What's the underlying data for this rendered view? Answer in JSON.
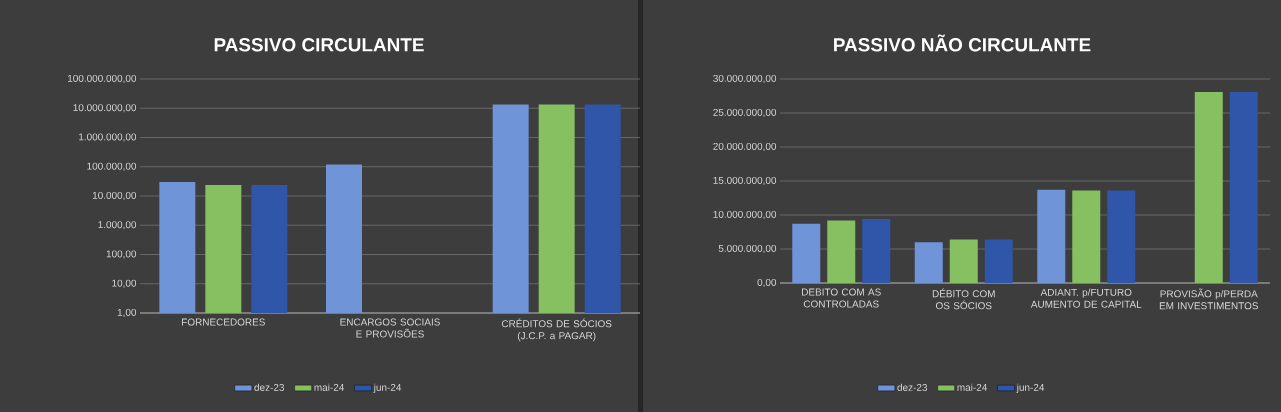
{
  "chart_data": [
    {
      "type": "bar",
      "title": "PASSIVO CIRCULANTE",
      "categories": [
        "FORNECEDORES",
        "ENCARGOS SOCIAIS E PROVISÕES",
        "CRÉDITOS DE SÓCIOS (J.C.P. a PAGAR)"
      ],
      "series": [
        {
          "name": "dez-23",
          "color": "#6f94d8",
          "values": [
            30000,
            120000,
            13500000
          ]
        },
        {
          "name": "mai-24",
          "color": "#86c060",
          "values": [
            24000,
            null,
            13500000
          ]
        },
        {
          "name": "jun-24",
          "color": "#2f56a8",
          "values": [
            24000,
            null,
            13500000
          ]
        }
      ],
      "log": true,
      "ylim": [
        1,
        100000000
      ],
      "yticks": [
        {
          "value": 1,
          "label": "1,00"
        },
        {
          "value": 10,
          "label": "10,00"
        },
        {
          "value": 100,
          "label": "100,00"
        },
        {
          "value": 1000,
          "label": "1.000,00"
        },
        {
          "value": 10000,
          "label": "10.000,00"
        },
        {
          "value": 100000,
          "label": "100.000,00"
        },
        {
          "value": 1000000,
          "label": "1.000.000,00"
        },
        {
          "value": 10000000,
          "label": "10.000.000,00"
        },
        {
          "value": 100000000,
          "label": "100.000.000,00"
        }
      ],
      "grid": "y",
      "legend": "bottom"
    },
    {
      "type": "bar",
      "title": "PASSIVO NÃO CIRCULANTE",
      "categories": [
        "DEBITO COM AS CONTROLADAS",
        "DÉBITO COM OS SÓCIOS",
        "ADIANT. p/FUTURO AUMENTO DE CAPITAL",
        "PROVISÃO p/PERDA EM INVESTIMENTOS"
      ],
      "series": [
        {
          "name": "dez-23",
          "color": "#6f94d8",
          "values": [
            8700000,
            6000000,
            13700000,
            0
          ]
        },
        {
          "name": "mai-24",
          "color": "#86c060",
          "values": [
            9200000,
            6400000,
            13600000,
            28100000
          ]
        },
        {
          "name": "jun-24",
          "color": "#2f56a8",
          "values": [
            9400000,
            6400000,
            13600000,
            28100000
          ]
        }
      ],
      "ylim": [
        0,
        30000000
      ],
      "yticks": [
        {
          "value": 0,
          "label": "0,00"
        },
        {
          "value": 5000000,
          "label": "5.000.000,00"
        },
        {
          "value": 10000000,
          "label": "10.000.000,00"
        },
        {
          "value": 15000000,
          "label": "15.000.000,00"
        },
        {
          "value": 20000000,
          "label": "20.000.000,00"
        },
        {
          "value": 25000000,
          "label": "25.000.000,00"
        },
        {
          "value": 30000000,
          "label": "30.000.000,00"
        }
      ],
      "grid": "y",
      "legend": "bottom"
    }
  ]
}
